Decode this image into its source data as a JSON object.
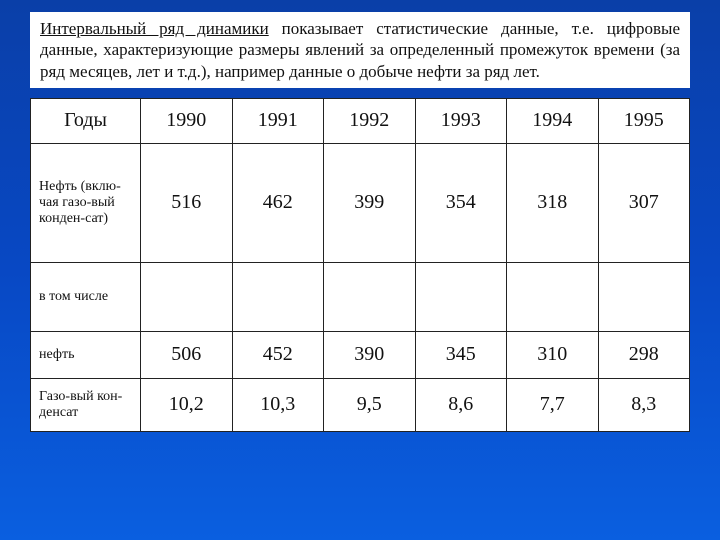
{
  "description": {
    "term": "Интервальный ряд динамики",
    "rest": " показывает статистические данные, т.е. цифровые данные, характеризующие размеры явлений за определенный промежуток времени (за ряд месяцев, лет и т.д.), например данные о добыче нефти за ряд лет."
  },
  "table": {
    "header_label": "Годы",
    "years": [
      "1990",
      "1991",
      "1992",
      "1993",
      "1994",
      "1995"
    ],
    "rows": [
      {
        "label": "Нефть (вклю-чая газо-вый конден-сат)",
        "values": [
          "516",
          "462",
          "399",
          "354",
          "318",
          "307"
        ],
        "css": "tall"
      },
      {
        "label": "в том числе",
        "values": [
          "",
          "",
          "",
          "",
          "",
          ""
        ],
        "css": "med"
      },
      {
        "label": "нефть",
        "values": [
          "506",
          "452",
          "390",
          "345",
          "310",
          "298"
        ],
        "css": "short"
      },
      {
        "label": "Газо-вый кон-денсат",
        "values": [
          "10,2",
          "10,3",
          "9,5",
          "8,6",
          "7,7",
          "8,3"
        ],
        "css": "mid"
      }
    ]
  }
}
